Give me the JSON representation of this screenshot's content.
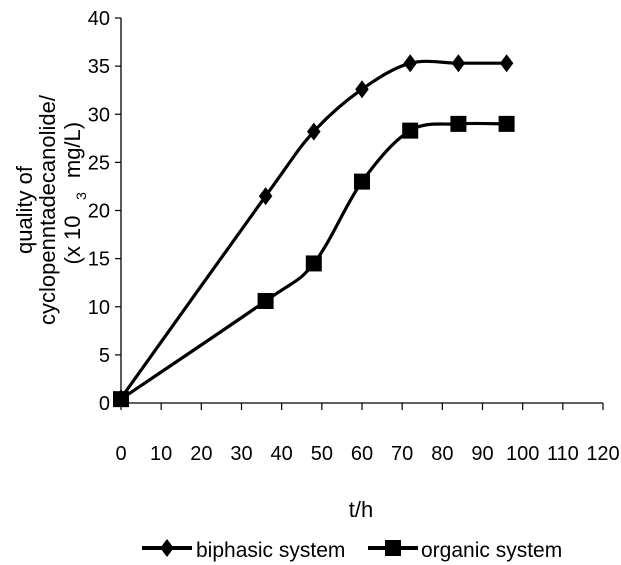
{
  "chart_data": {
    "type": "line",
    "xlabel": "t/h",
    "ylabel_lines": [
      "quality of",
      "cyclopenntadecanolide/",
      "(x 10",
      "3",
      "mg/L)"
    ],
    "xlim": [
      0,
      120
    ],
    "ylim": [
      0,
      40
    ],
    "x_ticks": [
      "0",
      "10",
      "20",
      "30",
      "40",
      "50",
      "60",
      "70",
      "80",
      "90",
      "100",
      "110",
      "120"
    ],
    "y_ticks": [
      "0",
      "5",
      "10",
      "15",
      "20",
      "25",
      "30",
      "35",
      "40"
    ],
    "grid": false,
    "legend_position": "bottom",
    "series": [
      {
        "name": "biphasic system",
        "marker": "diamond",
        "color": "#000000",
        "x": [
          0,
          36,
          48,
          60,
          72,
          84,
          96
        ],
        "y": [
          0.5,
          21.5,
          28.2,
          32.6,
          35.3,
          35.3,
          35.3
        ]
      },
      {
        "name": "organic system",
        "marker": "square",
        "color": "#000000",
        "x": [
          0,
          36,
          48,
          60,
          72,
          84,
          96
        ],
        "y": [
          0.4,
          10.6,
          14.5,
          23.0,
          28.3,
          29.0,
          29.0
        ]
      }
    ]
  }
}
